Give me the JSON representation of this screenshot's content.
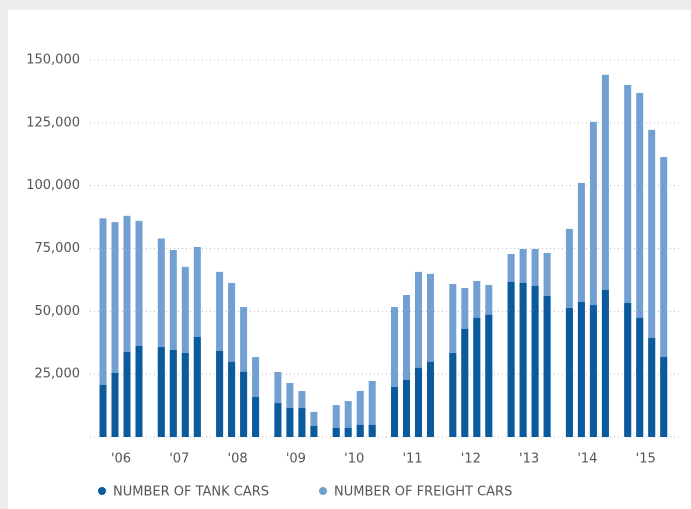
{
  "chart_data": {
    "type": "bar",
    "mode": "overlap",
    "categories": [
      "'06",
      "'07",
      "'08",
      "'09",
      "'10",
      "'11",
      "'12",
      "'13",
      "'14",
      "'15"
    ],
    "series": [
      {
        "name": "NUMBER OF FREIGHT CARS",
        "color": "#72a0d2",
        "values": [
          [
            87000,
            85500,
            88000,
            86000
          ],
          [
            79000,
            74400,
            67700,
            75600
          ],
          [
            65700,
            61300,
            51700,
            31800
          ],
          [
            25900,
            21500,
            18300,
            10000
          ],
          [
            12700,
            14300,
            18300,
            22300
          ],
          [
            51700,
            56500,
            65700,
            64900
          ],
          [
            60900,
            59300,
            62100,
            60500
          ],
          [
            72800,
            74800,
            74800,
            73200
          ],
          [
            82800,
            101100,
            125400,
            144100
          ],
          [
            140100,
            136900,
            122200,
            111400
          ]
        ]
      },
      {
        "name": "NUMBER OF TANK CARS",
        "color": "#0a5a9c",
        "values": [
          [
            20700,
            25500,
            33800,
            36200
          ],
          [
            35800,
            34600,
            33400,
            39800
          ],
          [
            34200,
            29900,
            25900,
            15900
          ],
          [
            13500,
            11500,
            11500,
            4400
          ],
          [
            3600,
            3600,
            4800,
            4800
          ],
          [
            19900,
            22700,
            27500,
            29900
          ],
          [
            33400,
            43000,
            47400,
            48600
          ],
          [
            61700,
            61300,
            60100,
            56100
          ],
          [
            51300,
            53700,
            52500,
            58500
          ],
          [
            53300,
            47400,
            39400,
            31800
          ]
        ]
      }
    ],
    "ylim": [
      0,
      150000
    ],
    "yticks": [
      {
        "value": 25000,
        "label": "25,000"
      },
      {
        "value": 50000,
        "label": "50,000"
      },
      {
        "value": 75000,
        "label": "75,000"
      },
      {
        "value": 100000,
        "label": "100,000"
      },
      {
        "value": 125000,
        "label": "125,000"
      },
      {
        "value": 150000,
        "label": "150,000"
      }
    ],
    "grid": true,
    "legend": "bottom"
  }
}
